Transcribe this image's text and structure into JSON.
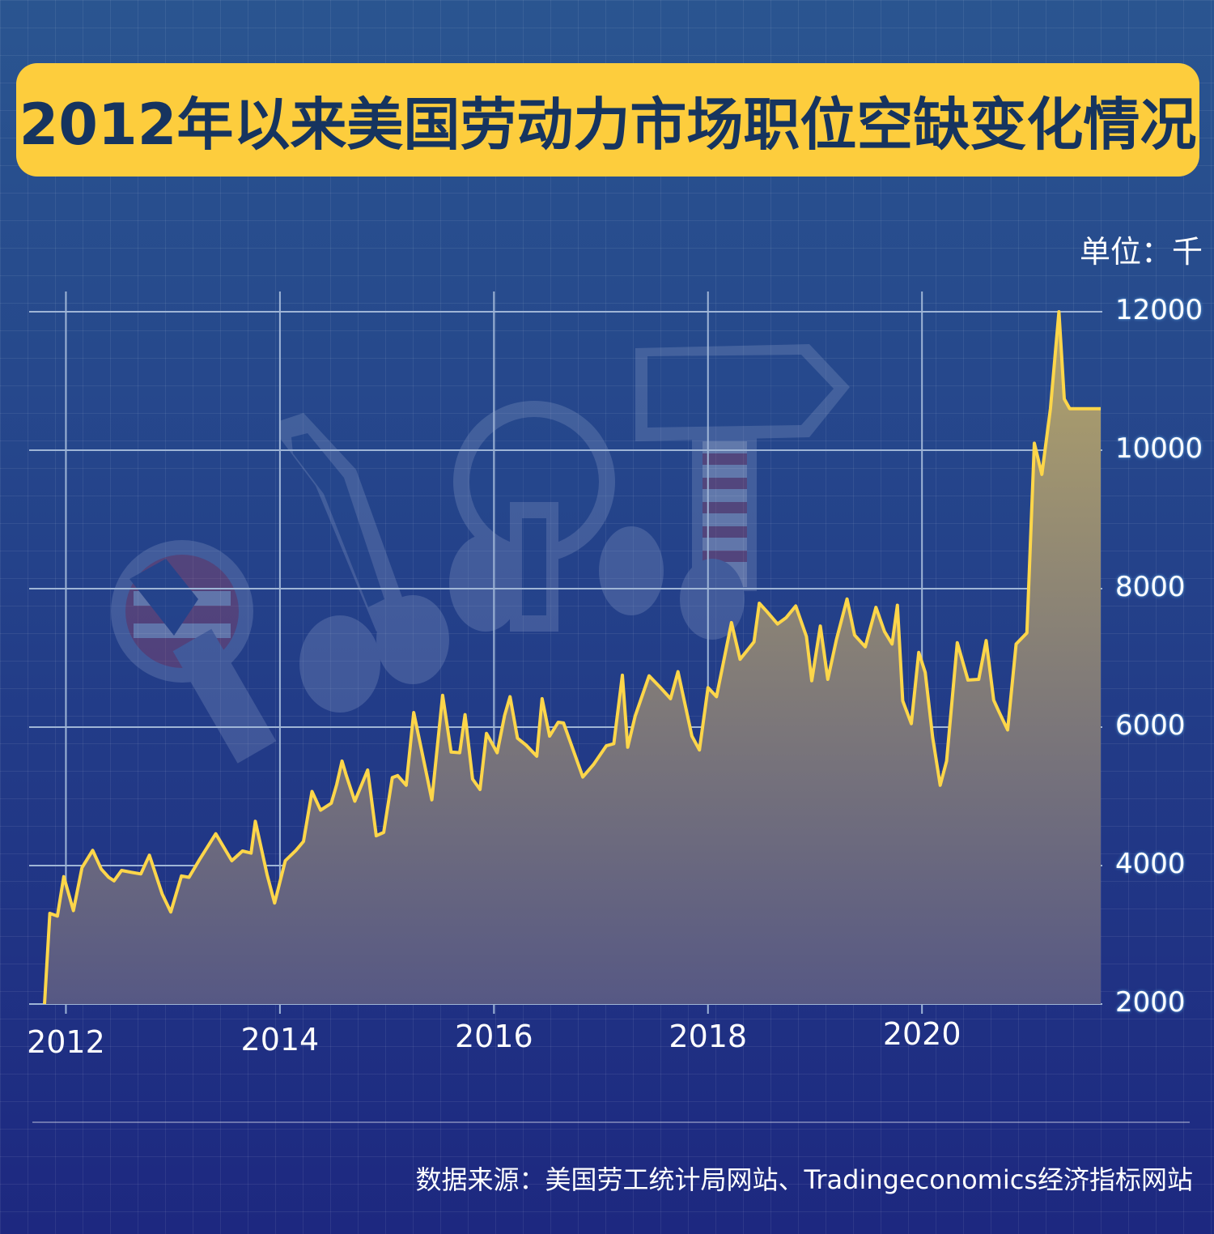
{
  "title": "2012年以来美国劳动力市场职位空缺变化情况",
  "unit_label": "单位：千",
  "source": "数据来源：美国劳工统计局网站、Tradingeconomics经济指标网站",
  "colors": {
    "title_bg": "#fdcd3d",
    "title_text": "#16345f",
    "line": "#fdd64a",
    "area_top": "#b3a46a",
    "area_bottom": "#565884",
    "gridline": "#9fb5d6"
  },
  "decoration_icons": [
    "wrench-icon",
    "screwdriver-icon",
    "pliers-icon",
    "hammer-icon",
    "raised-hands-icon"
  ],
  "chart_data": {
    "type": "area",
    "title": "2012年以来美国劳动力市场职位空缺变化情况",
    "ylabel": "单位：千",
    "xlim": [
      2011.8,
      2021.67
    ],
    "ylim": [
      2000,
      12000
    ],
    "yticks": [
      2000,
      4000,
      6000,
      8000,
      10000,
      12000
    ],
    "ytick_labels": [
      "2000",
      "4000",
      "6000",
      "8000",
      "10000",
      "12000"
    ],
    "xticks": [
      2012,
      2014,
      2016,
      2018,
      2020
    ],
    "xtick_labels": [
      "2012",
      "2014",
      "2016",
      "2018",
      "2020"
    ],
    "grid": true,
    "legend": "none",
    "series": [
      {
        "x": [
          2011.8,
          2011.85,
          2011.92,
          2011.98,
          2012.07,
          2012.15,
          2012.25,
          2012.33,
          2012.4,
          2012.45,
          2012.52,
          2012.62,
          2012.7,
          2012.78,
          2012.9,
          2012.98,
          2013.08,
          2013.15,
          2013.25,
          2013.4,
          2013.55,
          2013.65,
          2013.73,
          2013.77,
          2013.88,
          2013.95,
          2014.05,
          2014.15,
          2014.22,
          2014.3,
          2014.38,
          2014.48,
          2014.53,
          2014.58,
          2014.62,
          2014.7,
          2014.82,
          2014.9,
          2014.97,
          2015.05,
          2015.1,
          2015.18,
          2015.25,
          2015.35,
          2015.42,
          2015.52,
          2015.6,
          2015.68,
          2015.73,
          2015.8,
          2015.87,
          2015.93,
          2016.03,
          2016.1,
          2016.15,
          2016.22,
          2016.3,
          2016.4,
          2016.45,
          2016.52,
          2016.6,
          2016.65,
          2016.83,
          2016.93,
          2017.05,
          2017.12,
          2017.2,
          2017.25,
          2017.32,
          2017.45,
          2017.55,
          2017.65,
          2017.72,
          2017.85,
          2017.92,
          2018.0,
          2018.08,
          2018.22,
          2018.3,
          2018.43,
          2018.48,
          2018.55,
          2018.65,
          2018.73,
          2018.82,
          2018.92,
          2018.97,
          2019.05,
          2019.12,
          2019.2,
          2019.3,
          2019.37,
          2019.47,
          2019.57,
          2019.65,
          2019.72,
          2019.77,
          2019.82,
          2019.9,
          2019.97,
          2020.03,
          2020.1,
          2020.17,
          2020.23,
          2020.33,
          2020.43,
          2020.53,
          2020.6,
          2020.67,
          2020.72,
          2020.8,
          2020.88,
          2020.98,
          2021.05,
          2021.12,
          2021.2,
          2021.28,
          2021.33,
          2021.38,
          2021.45,
          2021.57,
          2021.62,
          2021.67
        ],
        "y": [
          2000,
          3310,
          3270,
          3840,
          3350,
          3970,
          4220,
          3950,
          3830,
          3780,
          3930,
          3900,
          3880,
          4150,
          3590,
          3330,
          3850,
          3830,
          4090,
          4460,
          4070,
          4210,
          4180,
          4640,
          3870,
          3460,
          4070,
          4220,
          4350,
          5070,
          4800,
          4900,
          5170,
          5510,
          5300,
          4930,
          5380,
          4430,
          4480,
          5270,
          5300,
          5160,
          6210,
          5470,
          4950,
          6460,
          5640,
          5630,
          6180,
          5250,
          5100,
          5910,
          5630,
          6170,
          6440,
          5840,
          5740,
          5580,
          6410,
          5870,
          6070,
          6060,
          5280,
          5460,
          5730,
          5760,
          6750,
          5710,
          6160,
          6740,
          6580,
          6410,
          6800,
          5870,
          5670,
          6570,
          6440,
          7510,
          6980,
          7230,
          7790,
          7670,
          7490,
          7580,
          7750,
          7310,
          6670,
          7460,
          6690,
          7260,
          7850,
          7330,
          7160,
          7730,
          7380,
          7200,
          7760,
          6380,
          6050,
          7080,
          6790,
          5850,
          5160,
          5510,
          7220,
          6680,
          6690,
          7250,
          6390,
          6220,
          5960,
          7200,
          7360,
          10100,
          9650,
          10600,
          12000,
          10740,
          10600,
          10600,
          10600,
          10600,
          10600
        ]
      }
    ]
  }
}
